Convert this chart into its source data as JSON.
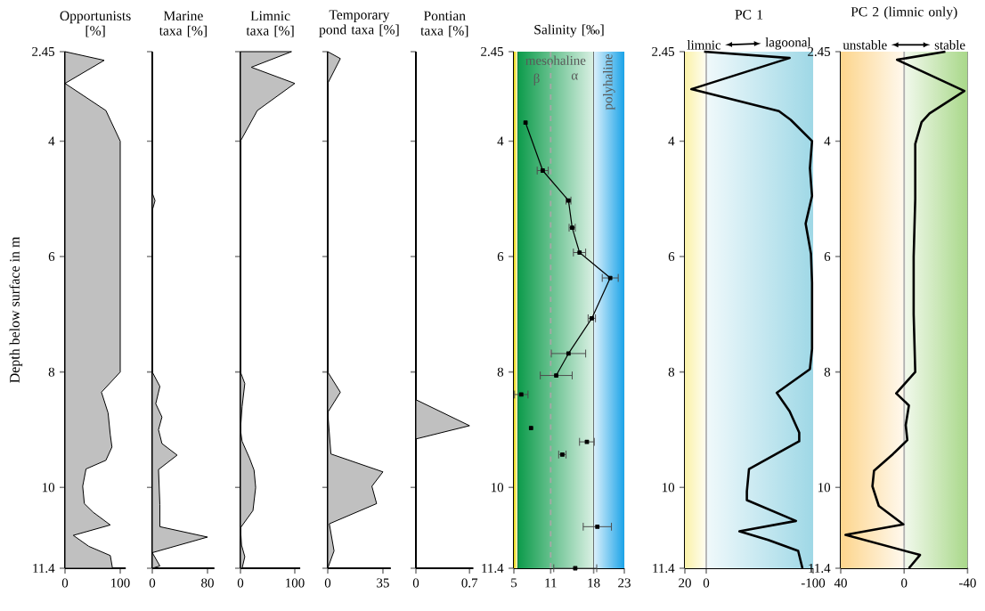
{
  "chart_data": [
    {
      "type": "area",
      "orientation": "horizontal",
      "title": "Opportunists [%]",
      "ylabel": "Depth below surface in m",
      "xlim": [
        0,
        110
      ],
      "xticks": [
        0,
        100
      ],
      "ylim": [
        11.4,
        2.45
      ],
      "yticks": [
        2.45,
        4,
        6,
        8,
        10,
        11.4
      ],
      "series": [
        {
          "color": "#c0c0c0",
          "x": [
            2.45,
            2.6,
            3.0,
            3.47,
            4.0,
            8.0,
            8.35,
            8.71,
            9.09,
            9.3,
            9.53,
            9.68,
            9.98,
            10.28,
            10.43,
            10.65,
            10.83,
            11.02,
            11.18,
            11.4
          ],
          "values": [
            0,
            71,
            0,
            74,
            100,
            100,
            66,
            78,
            82,
            85,
            74,
            38,
            32,
            35,
            51,
            82,
            15,
            43,
            82,
            86
          ]
        }
      ]
    },
    {
      "type": "area",
      "orientation": "horizontal",
      "title": "Marine taxa [%]",
      "xlim": [
        0,
        90
      ],
      "xticks": [
        0,
        80
      ],
      "ylim": [
        11.4,
        2.45
      ],
      "yticks": [
        2.45,
        4,
        6,
        8,
        10,
        11.4
      ],
      "tick_labels": "x",
      "series": [
        {
          "color": "#c0c0c0",
          "x": [
            2.45,
            4.9,
            5.03,
            5.2,
            8.0,
            8.25,
            8.55,
            8.78,
            9.0,
            9.24,
            9.44,
            9.69,
            10.3,
            10.68,
            10.86,
            11.13,
            11.36,
            11.4
          ],
          "values": [
            0,
            0,
            4,
            0,
            0,
            11,
            5,
            14,
            9,
            14,
            36,
            9,
            11,
            11,
            80,
            0,
            11,
            0
          ]
        }
      ]
    },
    {
      "type": "area",
      "orientation": "horizontal",
      "title": "Limnic taxa [%]",
      "xlim": [
        0,
        110
      ],
      "xticks": [
        0,
        100
      ],
      "ylim": [
        11.4,
        2.45
      ],
      "yticks": [
        2.45,
        4,
        6,
        8,
        10,
        11.4
      ],
      "tick_labels": "x",
      "series": [
        {
          "color": "#c0c0c0",
          "x": [
            2.45,
            2.72,
            3.0,
            3.47,
            4.0,
            8.0,
            8.2,
            8.6,
            9.0,
            9.2,
            9.5,
            9.7,
            10.0,
            10.4,
            10.7,
            11.0,
            11.2,
            11.4
          ],
          "values": [
            94,
            20,
            100,
            31,
            0,
            0,
            8,
            3,
            0,
            3,
            17,
            25,
            28,
            23,
            0,
            2,
            8,
            3
          ]
        }
      ]
    },
    {
      "type": "area",
      "orientation": "horizontal",
      "title": "Temporary pond taxa [%]",
      "xlim": [
        0,
        40
      ],
      "xticks": [
        0,
        35
      ],
      "ylim": [
        11.4,
        2.45
      ],
      "yticks": [
        2.45,
        4,
        6,
        8,
        10,
        11.4
      ],
      "tick_labels": "x",
      "series": [
        {
          "color": "#c0c0c0",
          "x": [
            2.45,
            2.57,
            3.0,
            8.0,
            8.35,
            8.7,
            9.42,
            9.73,
            9.98,
            10.28,
            10.63,
            11.1,
            11.4
          ],
          "values": [
            0,
            8,
            0,
            0,
            8,
            0,
            2,
            35,
            28,
            31,
            1,
            4,
            0
          ]
        }
      ]
    },
    {
      "type": "area",
      "orientation": "horizontal",
      "title": "Pontian taxa [%]",
      "xlim": [
        0,
        0.75
      ],
      "xticks": [
        0,
        0.7
      ],
      "ylim": [
        11.4,
        2.45
      ],
      "yticks": [
        2.45,
        4,
        6,
        8,
        10,
        11.4
      ],
      "tick_labels": "x",
      "series": [
        {
          "color": "#c0c0c0",
          "x": [
            2.45,
            8.48,
            8.93,
            9.16,
            11.4
          ],
          "values": [
            0,
            0,
            0.7,
            0,
            0
          ]
        }
      ]
    },
    {
      "type": "line",
      "orientation": "horizontal",
      "title": "Salinity [‰]",
      "xlim": [
        5,
        23
      ],
      "xticks": [
        5,
        11,
        18,
        23
      ],
      "ylim": [
        11.4,
        2.45
      ],
      "yticks": [
        2.45,
        4,
        6,
        8,
        10,
        11.4
      ],
      "marker": "square",
      "annotations": [
        "β",
        "α"
      ],
      "bands": [
        {
          "axis": "x",
          "from": 5,
          "to": 5.6,
          "color": "#e8d400"
        },
        {
          "axis": "x",
          "from": 5.6,
          "to": 18,
          "label": "mesohaline",
          "color": "#0b9b4a"
        },
        {
          "axis": "x",
          "from": 18,
          "to": 23,
          "label": "polyhaline",
          "color": "#1ba3e8"
        }
      ],
      "ref_lines": [
        {
          "axis": "x",
          "value": 11,
          "color": "#a8a8a8",
          "line_style": "dashed"
        }
      ],
      "series": [
        {
          "type": "line",
          "color": "#000000",
          "x": [
            3.68,
            4.51,
            5.03,
            5.5,
            5.93,
            6.37,
            7.07,
            7.68,
            8.06
          ],
          "values": [
            6.9,
            9.7,
            13.9,
            14.5,
            15.7,
            20.7,
            17.7,
            13.9,
            11.9
          ],
          "errors": [
            null,
            0.9,
            0.4,
            0.5,
            1.0,
            1.3,
            0.6,
            2.8,
            2.6
          ]
        },
        {
          "type": "scatter",
          "color": "#000000",
          "x": [
            8.39,
            8.97,
            9.21,
            9.43,
            10.68,
            11.4
          ],
          "values": [
            6.2,
            7.8,
            16.9,
            12.9,
            18.6,
            15.0
          ],
          "errors": [
            1.1,
            null,
            1.2,
            0.6,
            2.3,
            3.5
          ]
        }
      ]
    },
    {
      "type": "line",
      "orientation": "horizontal",
      "title": "PC 1",
      "xlim": [
        20,
        -100
      ],
      "xticks": [
        20,
        0,
        -100
      ],
      "ylim": [
        11.4,
        2.45
      ],
      "yticks": [
        2.45,
        4,
        6,
        8,
        10,
        11.4
      ],
      "annotations": [
        "limnic",
        "lagoonal"
      ],
      "bands": [
        {
          "axis": "x",
          "from": 20,
          "to": 0,
          "color": "#fbf2a8"
        },
        {
          "axis": "x",
          "from": 0,
          "to": -100,
          "color": "#9fd8e6"
        }
      ],
      "ref_lines": [
        {
          "axis": "x",
          "value": 0,
          "color": "#b0b0b0"
        }
      ],
      "series": [
        {
          "color": "#000000",
          "x": [
            2.45,
            2.56,
            3.1,
            3.48,
            3.63,
            4.0,
            4.47,
            4.95,
            5.43,
            5.95,
            6.45,
            7.6,
            7.95,
            8.36,
            8.68,
            9.05,
            9.2,
            9.68,
            10.07,
            10.22,
            10.58,
            10.76,
            10.91,
            11.1,
            11.4
          ],
          "values": [
            2,
            -78,
            14,
            -68,
            -79,
            -99,
            -97,
            -99,
            -93,
            -98,
            -99,
            -99,
            -97,
            -66,
            -78,
            -87,
            -87,
            -40,
            -38,
            -38,
            -84,
            -31,
            -58,
            -86,
            -90
          ]
        }
      ]
    },
    {
      "type": "line",
      "orientation": "horizontal",
      "title": "PC 2 (limnic only)",
      "xlim": [
        40,
        -40
      ],
      "xticks": [
        40,
        0,
        -40
      ],
      "ylim": [
        11.4,
        2.45
      ],
      "yticks": [
        2.45,
        4,
        6,
        8,
        10,
        11.4
      ],
      "annotations": [
        "unstable",
        "stable"
      ],
      "bands": [
        {
          "axis": "x",
          "from": 40,
          "to": 0,
          "color": "#fdd58c"
        },
        {
          "axis": "x",
          "from": 0,
          "to": -40,
          "color": "#a9d88a"
        }
      ],
      "ref_lines": [
        {
          "axis": "x",
          "value": 0,
          "color": "#b0b0b0"
        }
      ],
      "series": [
        {
          "color": "#000000",
          "x": [
            2.45,
            2.59,
            3.13,
            3.52,
            3.67,
            4.05,
            5.0,
            6.0,
            7.0,
            8.0,
            8.37,
            8.58,
            8.92,
            9.18,
            9.42,
            9.71,
            9.98,
            10.32,
            10.64,
            10.82,
            11.17,
            11.4
          ],
          "values": [
            -26,
            4.5,
            -38,
            -16,
            -11,
            -7,
            -7,
            -6,
            -6,
            -7,
            5,
            -3,
            -1,
            -2,
            7,
            19,
            20,
            16,
            0.5,
            37,
            -10,
            -3
          ]
        }
      ]
    }
  ]
}
